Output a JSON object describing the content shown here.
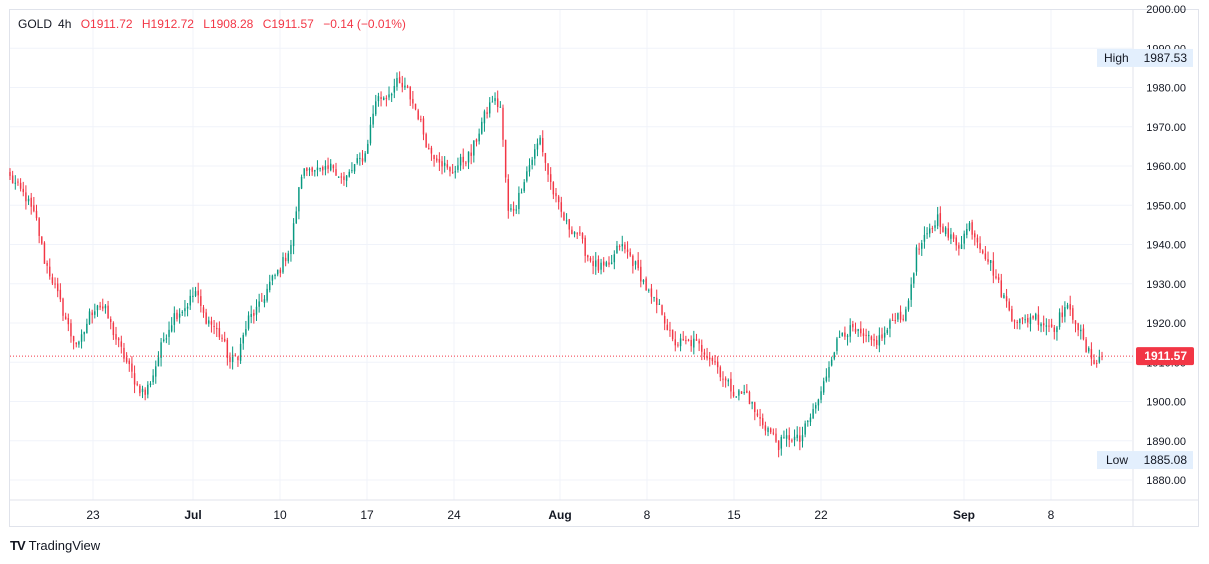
{
  "legend": {
    "symbol": "GOLD",
    "interval": "4h",
    "open": "O1911.72",
    "high": "H1912.72",
    "low": "L1908.28",
    "close": "C1911.57",
    "change": "−0.14 (−0.01%)"
  },
  "price_axis": {
    "labels": [
      "2000.00",
      "1990.00",
      "1980.00",
      "1970.00",
      "1960.00",
      "1950.00",
      "1940.00",
      "1930.00",
      "1920.00",
      "1910.00",
      "1900.00",
      "1890.00",
      "1880.00"
    ],
    "high_label": "High",
    "high_value": "1987.53",
    "low_label": "Low",
    "low_value": "1885.08",
    "last_price": "1911.57"
  },
  "time_axis": {
    "labels": [
      "23",
      "Jul",
      "10",
      "17",
      "24",
      "Aug",
      "8",
      "15",
      "22",
      "Sep",
      "8"
    ],
    "bold": [
      "Jul",
      "Aug",
      "Sep"
    ]
  },
  "footer": {
    "brand": "TradingView",
    "logo": "TV"
  },
  "colors": {
    "up": "#089981",
    "down": "#f23645",
    "grid": "#f0f3fa",
    "last_price": "#f23645",
    "hl_box": "#e3effd"
  },
  "chart_data": {
    "type": "candlestick",
    "symbol": "GOLD",
    "interval": "4h",
    "ylim": [
      1876,
      2001
    ],
    "last_price": 1911.57,
    "high": 1987.53,
    "low": 1885.08,
    "x_ticks": [
      "23",
      "Jul",
      "10",
      "17",
      "24",
      "Aug",
      "8",
      "15",
      "22",
      "Sep",
      "8"
    ],
    "y_ticks": [
      1880,
      1890,
      1900,
      1910,
      1920,
      1930,
      1940,
      1950,
      1960,
      1970,
      1980,
      1990,
      2000
    ],
    "anchors": [
      [
        0,
        1957
      ],
      [
        6,
        1952
      ],
      [
        10,
        1946
      ],
      [
        13,
        1936
      ],
      [
        16,
        1931
      ],
      [
        19,
        1925
      ],
      [
        23,
        1917
      ],
      [
        26,
        1914
      ],
      [
        30,
        1922
      ],
      [
        33,
        1925
      ],
      [
        36,
        1923
      ],
      [
        40,
        1916
      ],
      [
        44,
        1910
      ],
      [
        48,
        1904
      ],
      [
        51,
        1902
      ],
      [
        54,
        1907
      ],
      [
        58,
        1916
      ],
      [
        62,
        1922
      ],
      [
        66,
        1924
      ],
      [
        70,
        1928
      ],
      [
        73,
        1922
      ],
      [
        77,
        1919
      ],
      [
        80,
        1916
      ],
      [
        83,
        1910
      ],
      [
        86,
        1912
      ],
      [
        90,
        1921
      ],
      [
        94,
        1924
      ],
      [
        98,
        1930
      ],
      [
        102,
        1934
      ],
      [
        106,
        1940
      ],
      [
        110,
        1958
      ],
      [
        114,
        1960
      ],
      [
        118,
        1958
      ],
      [
        122,
        1960
      ],
      [
        126,
        1956
      ],
      [
        130,
        1960
      ],
      [
        134,
        1963
      ],
      [
        138,
        1977
      ],
      [
        142,
        1978
      ],
      [
        146,
        1981
      ],
      [
        150,
        1979
      ],
      [
        154,
        1973
      ],
      [
        158,
        1964
      ],
      [
        162,
        1962
      ],
      [
        166,
        1958
      ],
      [
        170,
        1961
      ],
      [
        174,
        1963
      ],
      [
        178,
        1971
      ],
      [
        182,
        1977
      ],
      [
        185,
        1975
      ],
      [
        188,
        1948
      ],
      [
        191,
        1950
      ],
      [
        194,
        1957
      ],
      [
        197,
        1962
      ],
      [
        200,
        1967
      ],
      [
        203,
        1958
      ],
      [
        206,
        1951
      ],
      [
        210,
        1945
      ],
      [
        214,
        1943
      ],
      [
        218,
        1937
      ],
      [
        222,
        1934
      ],
      [
        226,
        1934
      ],
      [
        230,
        1940
      ],
      [
        234,
        1937
      ],
      [
        238,
        1932
      ],
      [
        242,
        1926
      ],
      [
        246,
        1923
      ],
      [
        250,
        1915
      ],
      [
        254,
        1915
      ],
      [
        258,
        1915
      ],
      [
        262,
        1913
      ],
      [
        266,
        1910
      ],
      [
        270,
        1905
      ],
      [
        274,
        1902
      ],
      [
        278,
        1902
      ],
      [
        282,
        1896
      ],
      [
        286,
        1893
      ],
      [
        290,
        1889
      ],
      [
        294,
        1891
      ],
      [
        298,
        1890
      ],
      [
        302,
        1896
      ],
      [
        306,
        1902
      ],
      [
        310,
        1912
      ],
      [
        314,
        1918
      ],
      [
        318,
        1918
      ],
      [
        322,
        1916
      ],
      [
        326,
        1915
      ],
      [
        330,
        1917
      ],
      [
        334,
        1922
      ],
      [
        338,
        1922
      ],
      [
        342,
        1938
      ],
      [
        346,
        1942
      ],
      [
        350,
        1947
      ],
      [
        354,
        1942
      ],
      [
        358,
        1940
      ],
      [
        362,
        1945
      ],
      [
        366,
        1940
      ],
      [
        370,
        1935
      ],
      [
        374,
        1928
      ],
      [
        378,
        1922
      ],
      [
        382,
        1920
      ],
      [
        386,
        1922
      ],
      [
        390,
        1920
      ],
      [
        394,
        1919
      ],
      [
        398,
        1924
      ],
      [
        402,
        1921
      ],
      [
        406,
        1913
      ],
      [
        410,
        1910
      ],
      [
        412,
        1912
      ]
    ],
    "n_candles": 413
  }
}
